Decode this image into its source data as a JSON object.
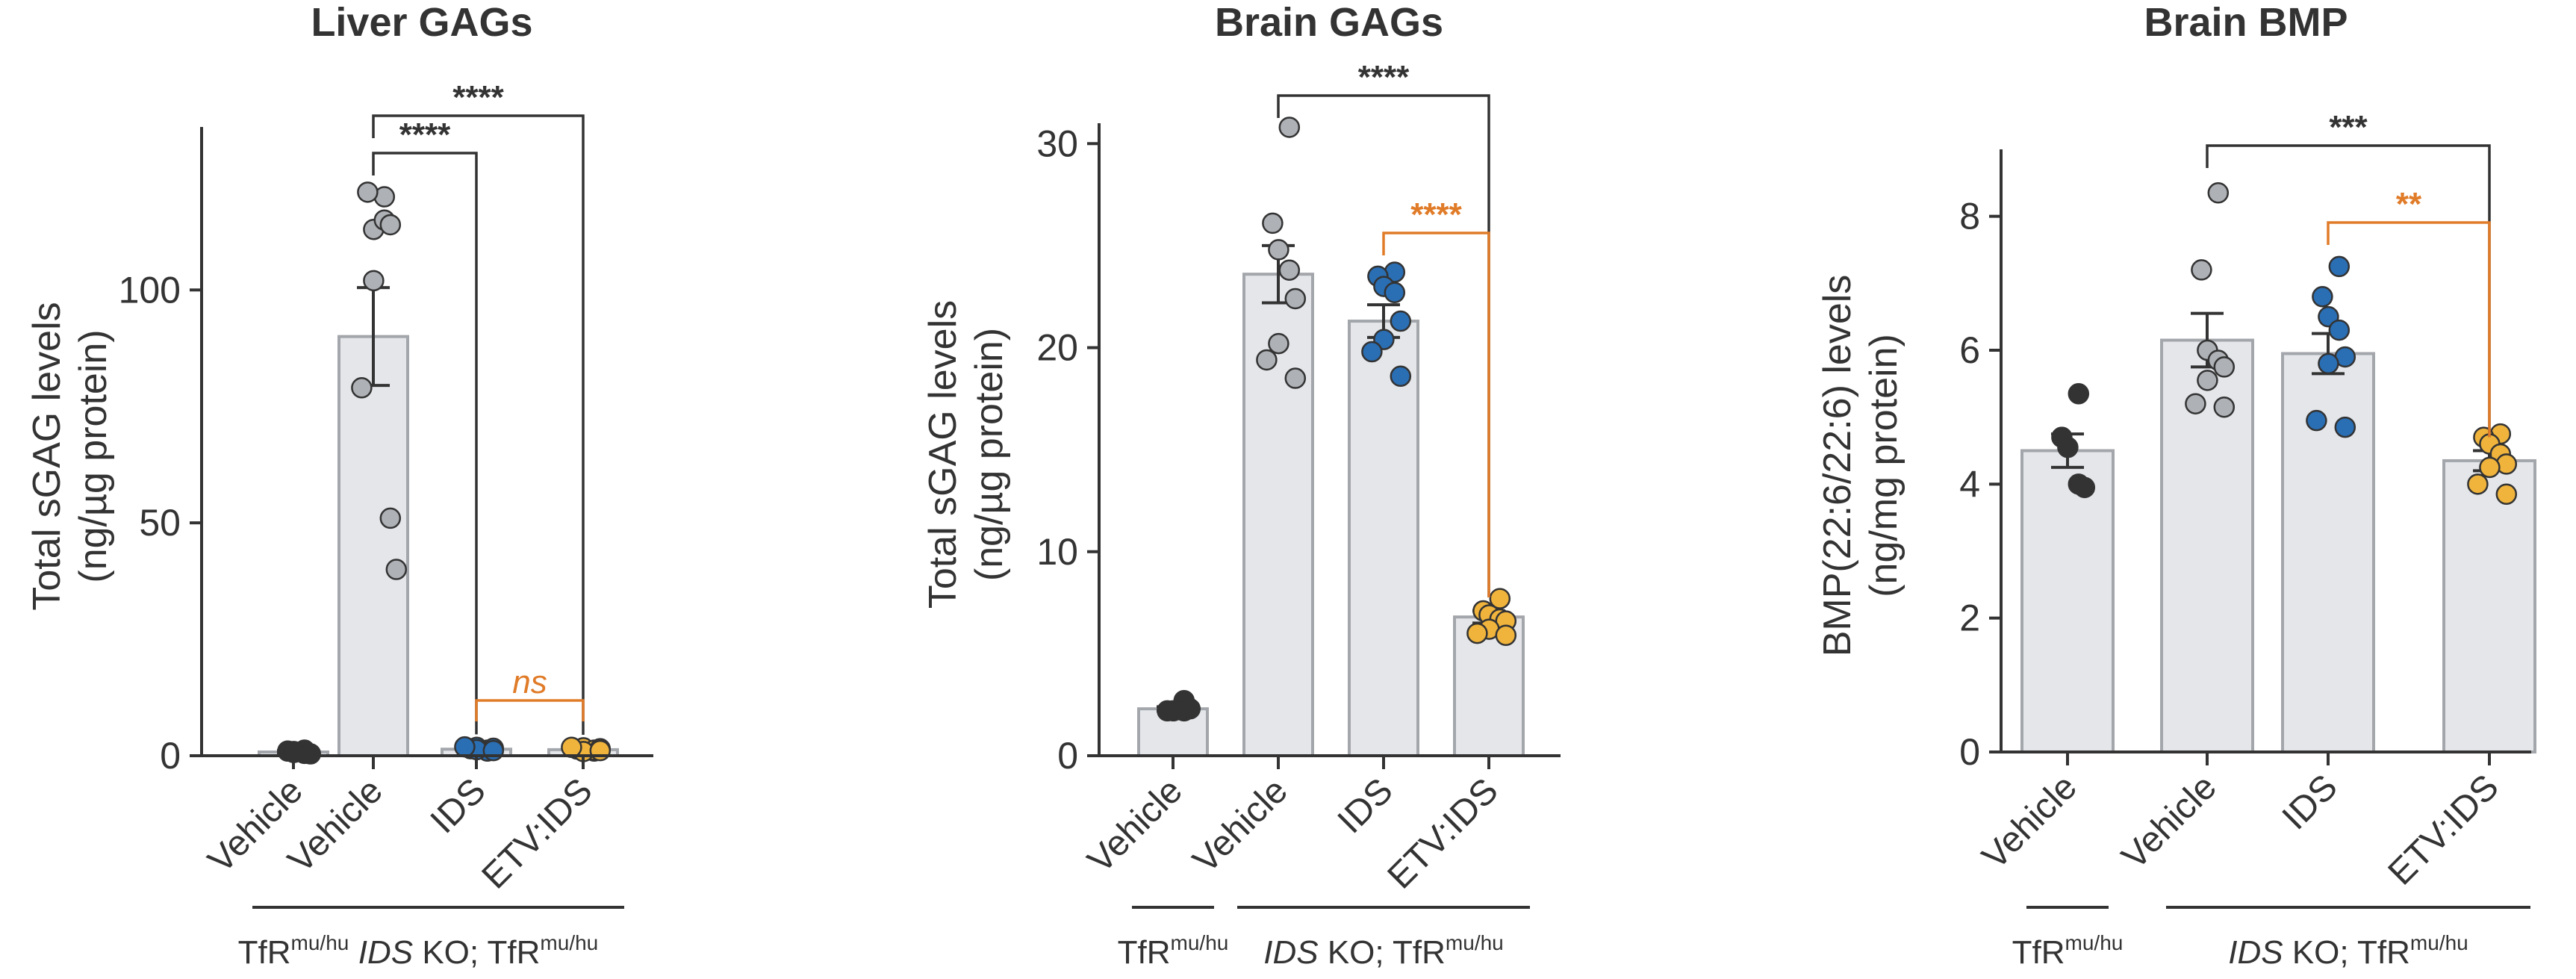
{
  "colors": {
    "axis": "#333333",
    "bar_fill": "#e4e6ea",
    "bar_stroke": "#a3a6ab",
    "bracket_dark": "#333333",
    "bracket_orange": "#e07b28",
    "point_stroke": "#333333"
  },
  "groups": {
    "control": {
      "base": "TfR",
      "sup": "mu/hu"
    },
    "ko": {
      "italic": "IDS",
      "rest": " KO; TfR",
      "sup": "mu/hu"
    }
  },
  "chart_data": [
    {
      "type": "bar",
      "title": "Liver GAGs",
      "ylabel_lines": [
        "Total sGAG levels",
        "(ng/µg protein)"
      ],
      "ylim": [
        0,
        135
      ],
      "yticks": [
        0,
        50,
        100
      ],
      "categories": [
        "Vehicle",
        "Vehicle",
        "IDS",
        "ETV:IDS"
      ],
      "means": [
        0.8,
        90,
        1.4,
        1.3
      ],
      "errors": [
        0.3,
        10.5,
        0.3,
        0.3
      ],
      "point_colors": [
        "#333333",
        "#aeb1b6",
        "#2a6eb4",
        "#f0b43c"
      ],
      "points": [
        [
          0.5,
          1.0,
          0.7,
          1.2,
          0.4,
          0.9
        ],
        [
          120,
          121,
          113,
          115,
          114,
          102,
          79,
          51,
          40
        ],
        [
          1.2,
          1.5,
          1.8,
          1.0,
          1.6,
          1.3,
          1.9,
          1.1
        ],
        [
          1.0,
          1.4,
          1.7,
          1.2,
          1.5,
          0.9,
          1.8,
          1.1
        ]
      ],
      "comparisons": [
        {
          "from": 1,
          "to": 3,
          "label": "****",
          "color": "dark"
        },
        {
          "from": 1,
          "to": 2,
          "label": "****",
          "color": "dark"
        },
        {
          "from": 2,
          "to": 3,
          "label": "ns",
          "color": "orange"
        }
      ]
    },
    {
      "type": "bar",
      "title": "Brain GAGs",
      "ylabel_lines": [
        "Total sGAG levels",
        "(ng/µg protein)"
      ],
      "ylim": [
        0,
        31
      ],
      "yticks": [
        0,
        10,
        20,
        30
      ],
      "categories": [
        "Vehicle",
        "Vehicle",
        "IDS",
        "ETV:IDS"
      ],
      "means": [
        2.3,
        23.6,
        21.3,
        6.8
      ],
      "errors": [
        0.1,
        1.4,
        0.8,
        0.3
      ],
      "point_colors": [
        "#333333",
        "#aeb1b6",
        "#2a6eb4",
        "#f0b43c"
      ],
      "points": [
        [
          2.7,
          2.2,
          2.2,
          2.2,
          2.3
        ],
        [
          30.8,
          26.1,
          24.8,
          23.8,
          22.4,
          20.2,
          19.4,
          18.5
        ],
        [
          23.7,
          23.5,
          23.0,
          22.7,
          21.3,
          20.4,
          19.8,
          18.6
        ],
        [
          7.7,
          7.1,
          6.9,
          6.7,
          6.6,
          6.2,
          6.0,
          5.9
        ]
      ],
      "comparisons": [
        {
          "from": 1,
          "to": 3,
          "label": "****",
          "color": "dark"
        },
        {
          "from": 2,
          "to": 3,
          "label": "****",
          "color": "orange"
        }
      ]
    },
    {
      "type": "bar",
      "title": "Brain BMP",
      "ylabel_lines": [
        "BMP(22:6/22:6) levels",
        "(ng/mg protein)"
      ],
      "ylim": [
        0,
        9
      ],
      "yticks": [
        0,
        2,
        4,
        6,
        8
      ],
      "categories": [
        "Vehicle",
        "Vehicle",
        "IDS",
        "ETV:IDS"
      ],
      "means": [
        4.5,
        6.15,
        5.95,
        4.35
      ],
      "errors": [
        0.25,
        0.4,
        0.3,
        0.15
      ],
      "point_colors": [
        "#333333",
        "#aeb1b6",
        "#2a6eb4",
        "#f0b43c"
      ],
      "points": [
        [
          5.35,
          4.7,
          4.55,
          4.0,
          3.95
        ],
        [
          8.35,
          7.2,
          6.0,
          5.85,
          5.75,
          5.55,
          5.2,
          5.15
        ],
        [
          7.25,
          6.8,
          6.5,
          6.3,
          5.9,
          5.8,
          4.95,
          4.85
        ],
        [
          4.75,
          4.7,
          4.6,
          4.45,
          4.3,
          4.25,
          4.0,
          3.85
        ]
      ],
      "comparisons": [
        {
          "from": 1,
          "to": 3,
          "label": "***",
          "color": "dark"
        },
        {
          "from": 2,
          "to": 3,
          "label": "**",
          "color": "orange"
        }
      ]
    }
  ]
}
